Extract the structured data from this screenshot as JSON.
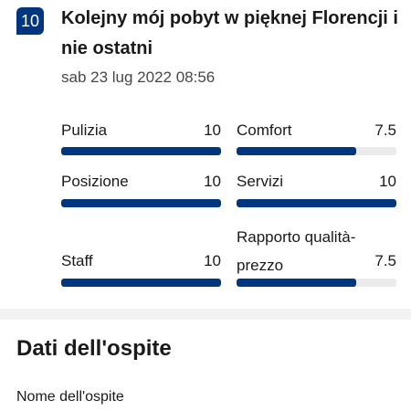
{
  "review": {
    "score": "10",
    "title": "Kolejny mój pobyt w pięknej Florencji i nie ostatni",
    "date": "sab 23 lug 2022 08:56"
  },
  "categories": [
    {
      "label": "Pulizia",
      "value": "10",
      "score": 10,
      "max": 10
    },
    {
      "label": "Comfort",
      "value": "7.5",
      "score": 7.5,
      "max": 10
    },
    {
      "label": "Posizione",
      "value": "10",
      "score": 10,
      "max": 10
    },
    {
      "label": "Servizi",
      "value": "10",
      "score": 10,
      "max": 10
    },
    {
      "label": "Staff",
      "value": "10",
      "score": 10,
      "max": 10
    },
    {
      "label": "Rapporto qualità-prezzo",
      "value": "7.5",
      "score": 7.5,
      "max": 10
    }
  ],
  "guest": {
    "heading": "Dati dell'ospite",
    "name_label": "Nome dell'ospite"
  },
  "colors": {
    "accent": "#003580",
    "track": "#ebebeb"
  }
}
